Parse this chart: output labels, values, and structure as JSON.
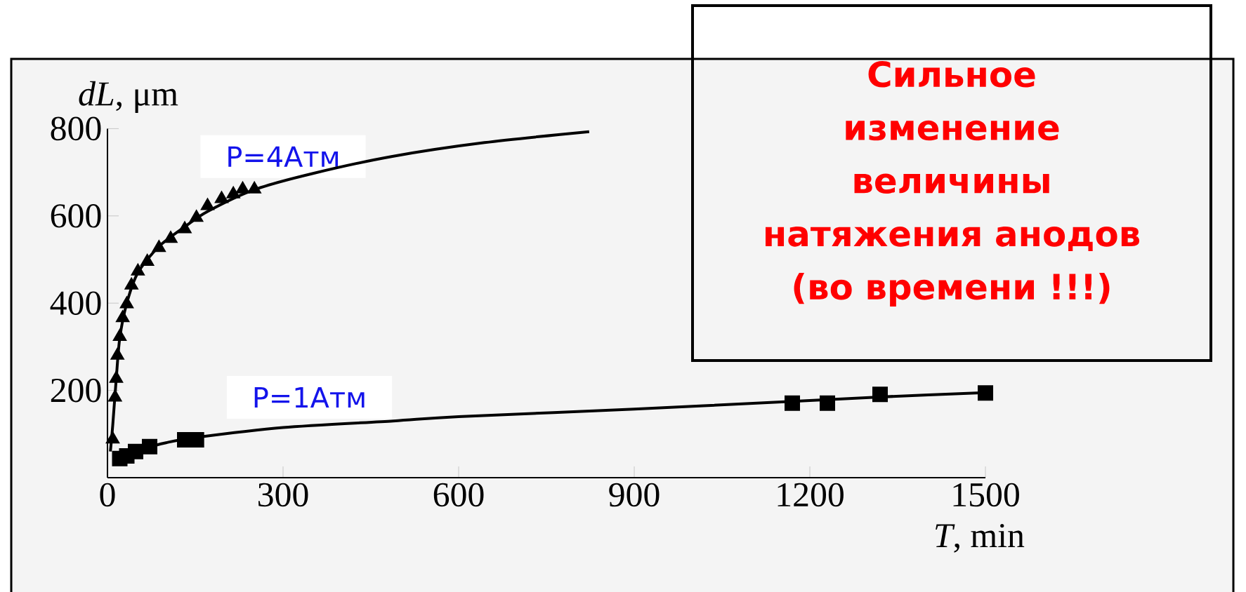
{
  "chart_data": {
    "type": "scatter",
    "xlabel": "*T*, min",
    "ylabel": "*dL*, μm",
    "xlim": [
      0,
      1500
    ],
    "ylim": [
      0,
      800
    ],
    "xticks": [
      0,
      300,
      600,
      900,
      1200,
      1500
    ],
    "yticks": [
      200,
      400,
      600,
      800
    ],
    "annotations": [
      "Сильное изменение величины натяжения анодов (во времени !!!)"
    ],
    "series": [
      {
        "name": "P=4Атм",
        "marker": "triangle",
        "color": "#000000",
        "x": [
          9,
          13,
          15,
          17,
          21,
          26,
          33,
          41,
          52,
          68,
          88,
          108,
          132,
          152,
          171,
          195,
          215,
          231,
          251
        ],
        "values": [
          88,
          184,
          227,
          280,
          323,
          366,
          398,
          441,
          473,
          495,
          527,
          548,
          570,
          596,
          623,
          639,
          650,
          661,
          661
        ]
      },
      {
        "name": "P=1Атм",
        "marker": "square",
        "color": "#000000",
        "x": [
          21,
          33,
          48,
          72,
          132,
          152,
          1170,
          1230,
          1320,
          1500
        ],
        "values": [
          44,
          50,
          60,
          71,
          87,
          87,
          171,
          171,
          191,
          194
        ]
      },
      {
        "type": "line",
        "color": "#000000",
        "x": [
          5,
          9,
          15,
          21,
          33,
          52,
          88,
          132,
          171,
          251,
          350,
          485,
          644,
          823
        ],
        "values": [
          60,
          120,
          227,
          320,
          400,
          470,
          530,
          575,
          610,
          660,
          697,
          736,
          768,
          793
        ]
      },
      {
        "type": "line",
        "color": "#000000",
        "x": [
          20,
          50,
          100,
          150,
          300,
          488,
          600,
          900,
          1170,
          1320,
          1500
        ],
        "values": [
          40,
          62,
          80,
          92,
          115,
          130,
          140,
          157,
          175,
          185,
          195
        ]
      }
    ]
  }
}
